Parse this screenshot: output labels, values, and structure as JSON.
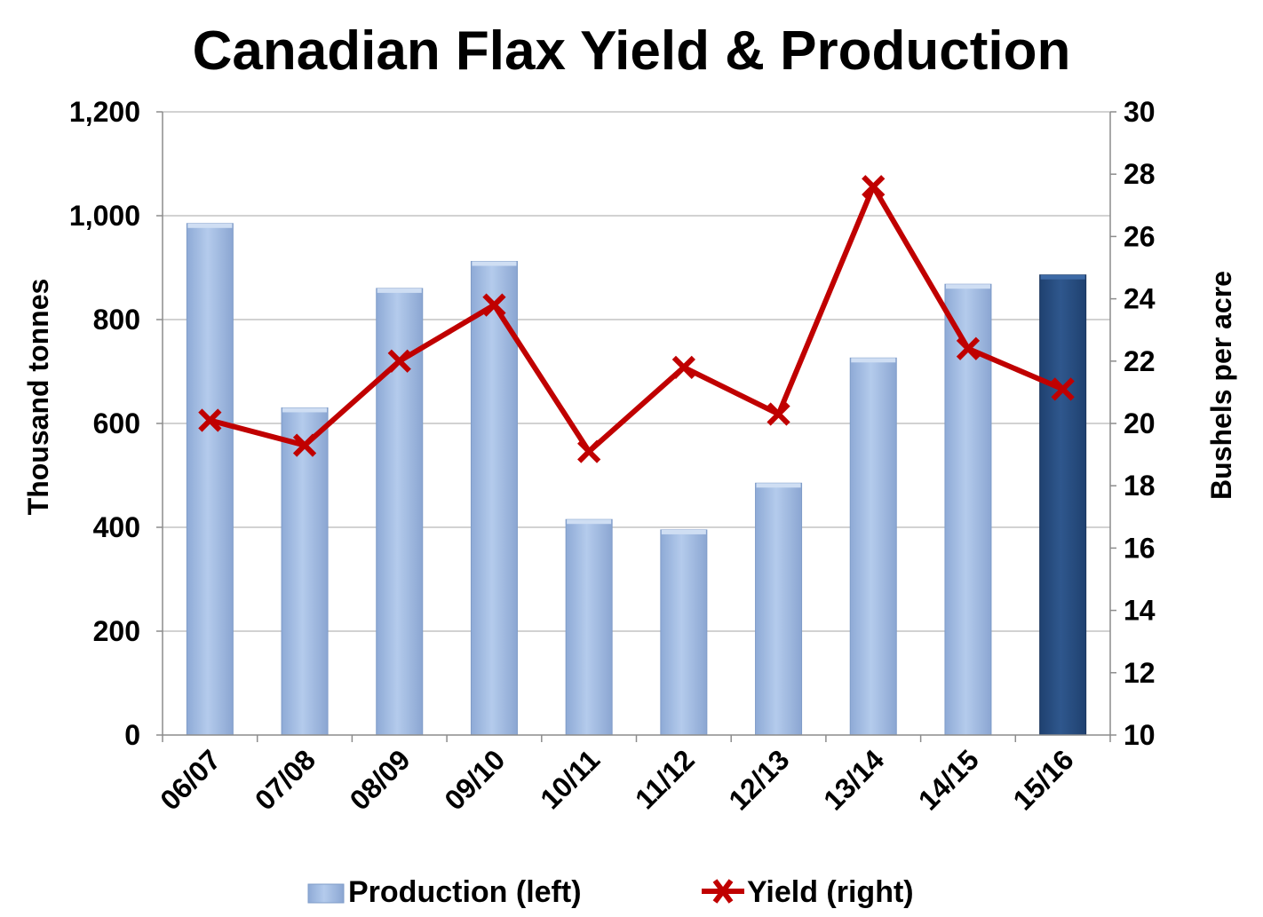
{
  "chart_data": {
    "type": "bar",
    "title": "Canadian Flax Yield & Production",
    "categories": [
      "06/07",
      "07/08",
      "08/09",
      "09/10",
      "10/11",
      "11/12",
      "12/13",
      "13/14",
      "14/15",
      "15/16"
    ],
    "series": [
      {
        "name": "Production (left)",
        "type": "bar",
        "axis": "left",
        "values": [
          985,
          630,
          860,
          912,
          415,
          395,
          485,
          726,
          868,
          886
        ],
        "color": "#a3bee2",
        "highlight_color": "#2b5184",
        "highlight_index": 9
      },
      {
        "name": "Yield (right)",
        "type": "line",
        "axis": "right",
        "values": [
          20.1,
          19.3,
          22.0,
          23.8,
          19.1,
          21.8,
          20.3,
          27.6,
          22.4,
          21.1
        ],
        "color": "#c00000"
      }
    ],
    "ylabel": "Thousand tonnes",
    "ylim": [
      0,
      1200
    ],
    "yticks": [
      "0",
      "200",
      "400",
      "600",
      "800",
      "1,000",
      "1,200"
    ],
    "y2label": "Bushels per acre",
    "y2lim": [
      10,
      30
    ],
    "y2ticks": [
      "10",
      "12",
      "14",
      "16",
      "18",
      "20",
      "22",
      "24",
      "26",
      "28",
      "30"
    ],
    "grid": true,
    "legend_position": "bottom"
  }
}
